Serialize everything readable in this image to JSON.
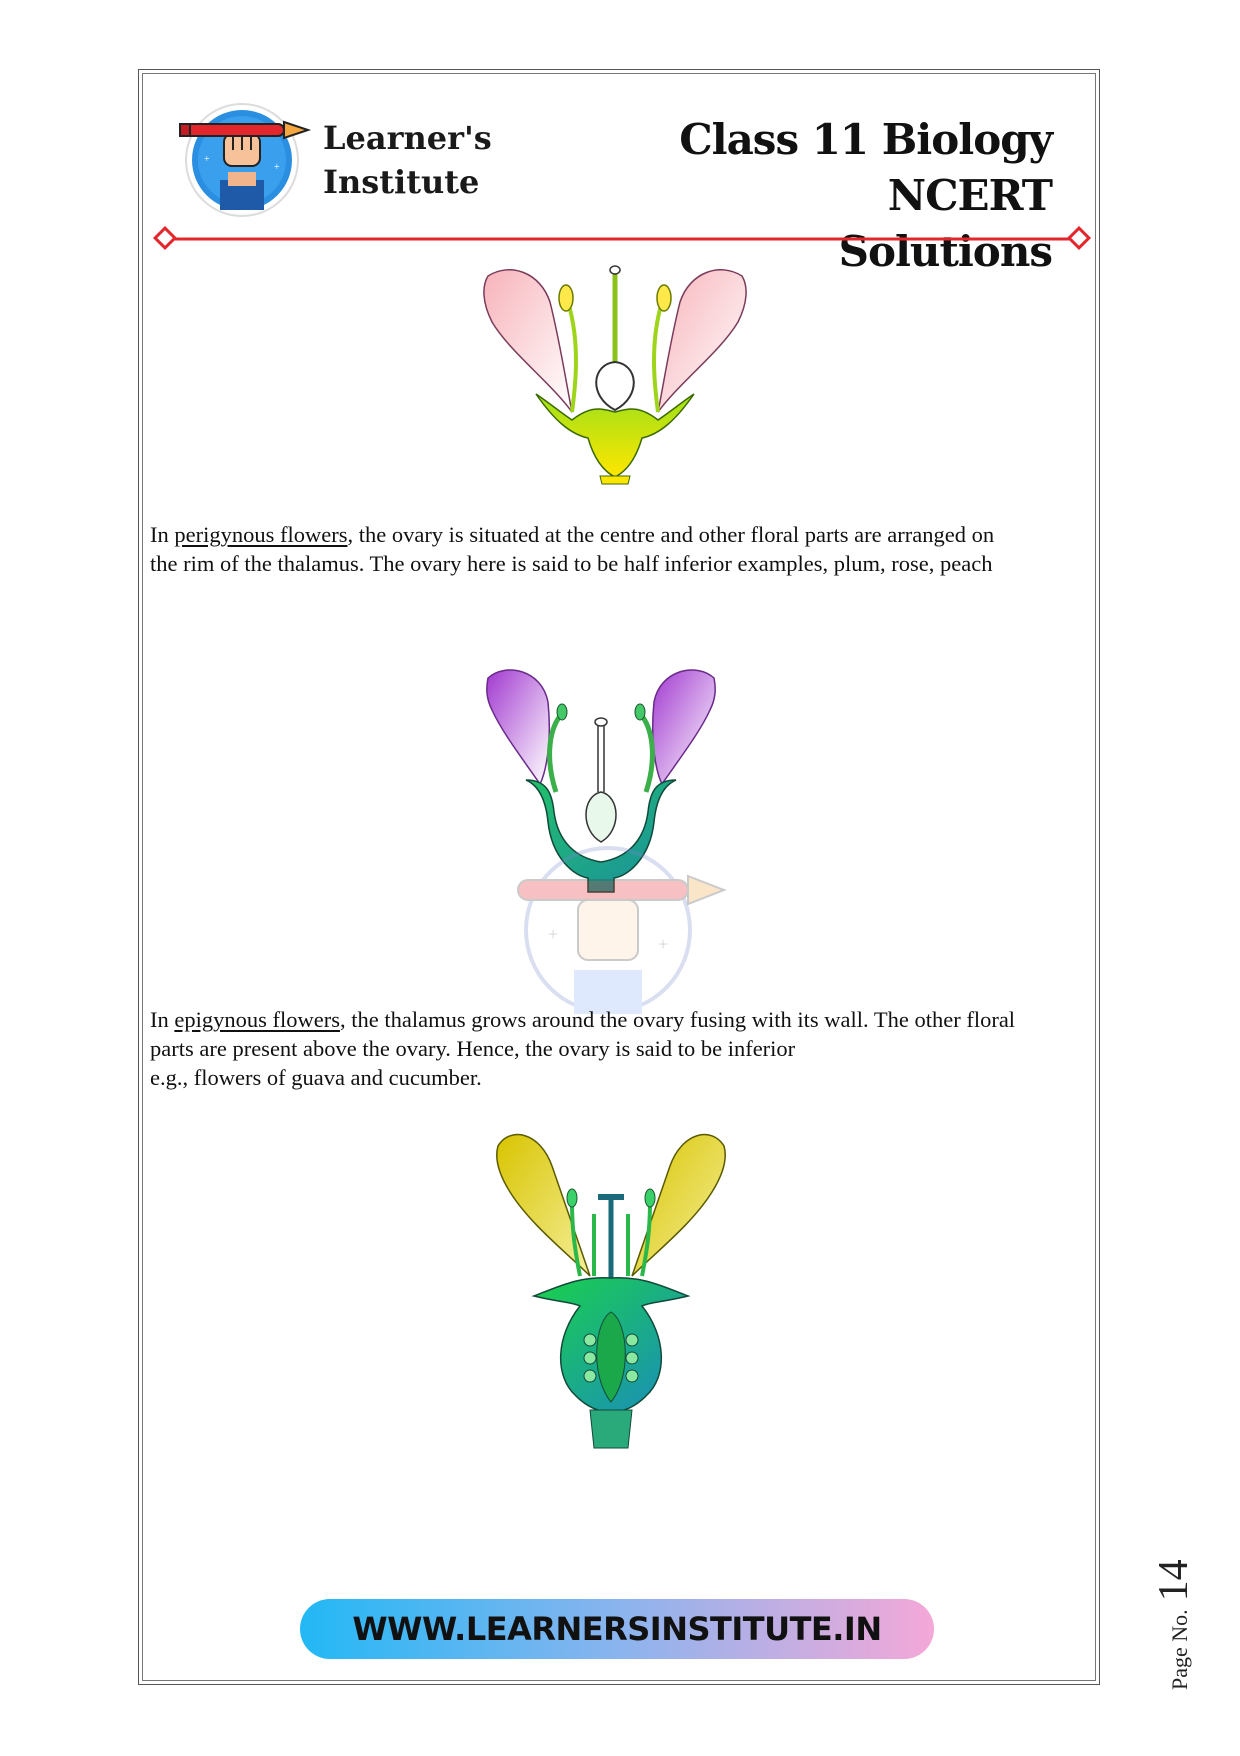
{
  "header": {
    "brand_line1": "Learner's",
    "brand_line2": "Institute",
    "title_line1": "Class 11 Biology NCERT",
    "title_line2": "Solutions"
  },
  "content": {
    "p1": {
      "prefix": "In ",
      "term": "perigynous flowers",
      "line1_rest": ", the ovary is situated at the centre and other floral parts are arranged on",
      "line2": "the rim of the thalamus. The ovary here is said to be half inferior examples, plum, rose, peach"
    },
    "p2": {
      "prefix": "In ",
      "term": "epigynous flowers",
      "line1_rest": ", the thalamus grows around the ovary fusing with its wall. The other floral",
      "line2": "parts are present above the ovary. Hence, the ovary is said to be inferior",
      "line3": "e.g., flowers of guava and cucumber."
    }
  },
  "footer": {
    "url": "WWW.LEARNERSINSTITUTE.IN",
    "page_label": "Page No.",
    "page_number": "14"
  },
  "colors": {
    "accent_red": "#e3262c",
    "footer_start": "#22b8f5",
    "footer_end": "#f4a8d8"
  }
}
